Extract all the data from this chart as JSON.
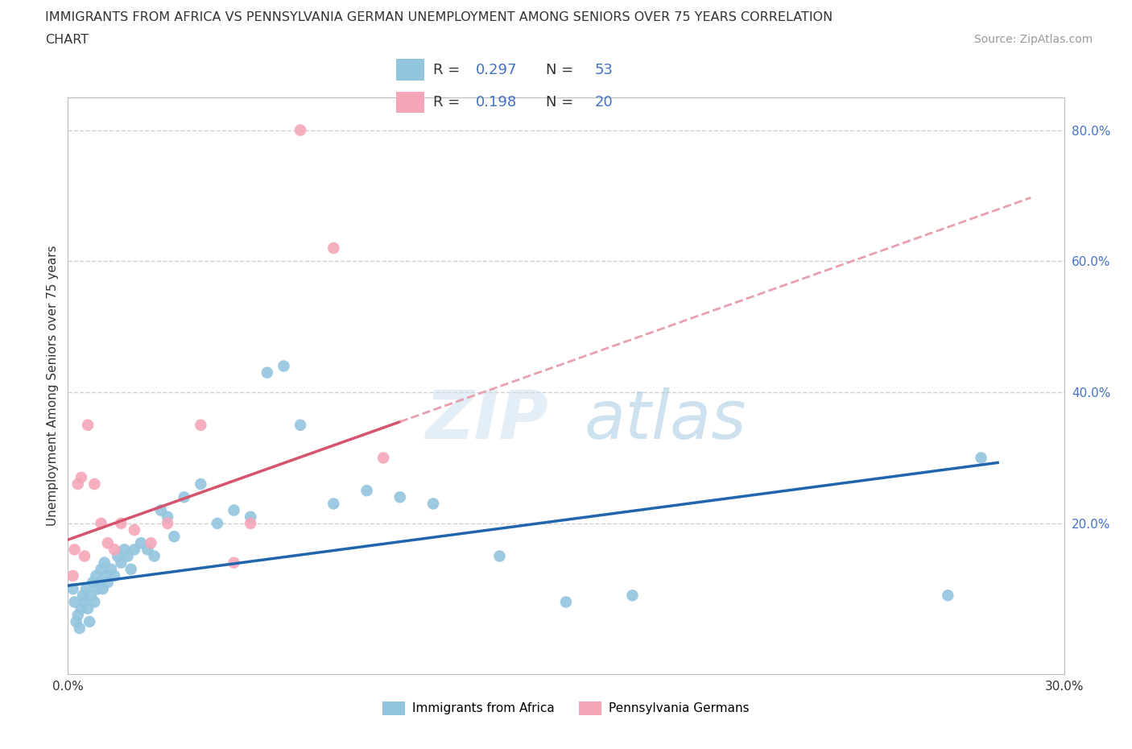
{
  "title_line1": "IMMIGRANTS FROM AFRICA VS PENNSYLVANIA GERMAN UNEMPLOYMENT AMONG SENIORS OVER 75 YEARS CORRELATION",
  "title_line2": "CHART",
  "source": "Source: ZipAtlas.com",
  "ylabel": "Unemployment Among Seniors over 75 years",
  "xlim": [
    0.0,
    30.0
  ],
  "ylim": [
    -3,
    85.0
  ],
  "blue_color": "#92c5de",
  "pink_color": "#f4a6b8",
  "blue_line_color": "#2166ac",
  "pink_line_color": "#d6536d",
  "pink_dash_color": "#e8a0ae",
  "grid_color": "#d0d0d0",
  "axis_label_color": "#4472c4",
  "text_color": "#333333",
  "source_color": "#999999",
  "R_blue": 0.297,
  "N_blue": 53,
  "R_pink": 0.198,
  "N_pink": 20,
  "blue_x": [
    0.15,
    0.2,
    0.25,
    0.3,
    0.35,
    0.4,
    0.45,
    0.5,
    0.55,
    0.6,
    0.65,
    0.7,
    0.75,
    0.8,
    0.85,
    0.9,
    0.95,
    1.0,
    1.05,
    1.1,
    1.15,
    1.2,
    1.3,
    1.4,
    1.5,
    1.6,
    1.7,
    1.8,
    1.9,
    2.0,
    2.2,
    2.4,
    2.6,
    2.8,
    3.0,
    3.2,
    3.5,
    4.0,
    4.5,
    5.0,
    5.5,
    6.0,
    6.5,
    7.0,
    8.0,
    9.0,
    10.0,
    11.0,
    13.0,
    15.0,
    17.0,
    26.5,
    27.5
  ],
  "blue_y": [
    10,
    8,
    5,
    6,
    4,
    7,
    9,
    8,
    10,
    7,
    5,
    9,
    11,
    8,
    12,
    10,
    11,
    13,
    10,
    14,
    12,
    11,
    13,
    12,
    15,
    14,
    16,
    15,
    13,
    16,
    17,
    16,
    15,
    22,
    21,
    18,
    24,
    26,
    20,
    22,
    21,
    43,
    44,
    35,
    23,
    25,
    24,
    23,
    15,
    8,
    9,
    9,
    30
  ],
  "pink_x": [
    0.15,
    0.2,
    0.3,
    0.4,
    0.5,
    0.6,
    0.8,
    1.0,
    1.2,
    1.4,
    1.6,
    2.0,
    2.5,
    3.0,
    4.0,
    5.0,
    5.5,
    7.0,
    8.0,
    9.5
  ],
  "pink_y": [
    12,
    16,
    26,
    27,
    15,
    35,
    26,
    20,
    17,
    16,
    20,
    19,
    17,
    20,
    35,
    14,
    20,
    80,
    62,
    30
  ],
  "background_color": "#ffffff"
}
